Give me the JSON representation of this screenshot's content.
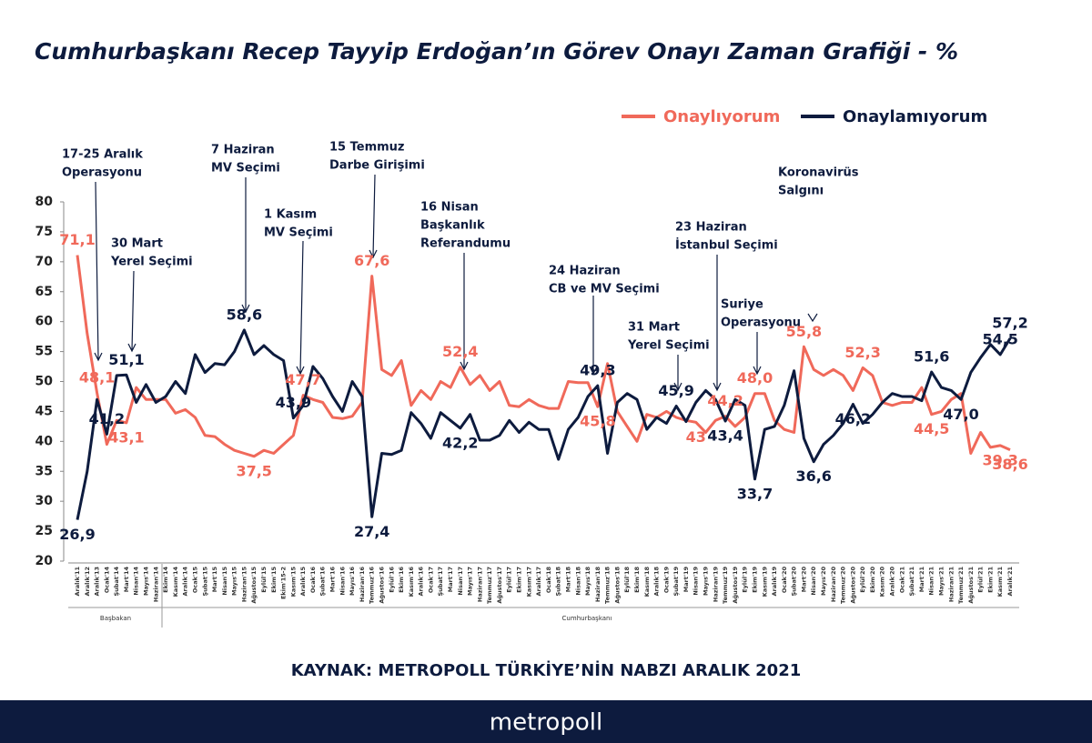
{
  "chart_data": {
    "type": "line",
    "title": "Cumhurbaşkanı Recep Tayyip Erdoğan’ın Görev Onayı Zaman Grafiği - %",
    "categories": [
      "Aralık'11",
      "Aralık'12",
      "Aralık'13",
      "Ocak'14",
      "Şubat'14",
      "Mart'14",
      "Nisan'14",
      "Mayıs'14",
      "Haziran'14",
      "Ekim'14",
      "Kasım'14",
      "Aralık'14",
      "Ocak'15",
      "Şubat'15",
      "Mart'15",
      "Nisan'15",
      "Mayıs'15",
      "Haziran'15",
      "Ağustos'15",
      "Eylül'15",
      "Ekim'15",
      "Ekim'15-2",
      "Kasım'15",
      "Aralık'15",
      "Ocak'16",
      "Şubat'16",
      "Mart'16",
      "Nisan'16",
      "Mayıs'16",
      "Haziran'16",
      "Temmuz'16",
      "Ağustos'16",
      "Eylül'16",
      "Ekim'16",
      "Kasım'16",
      "Aralık'16",
      "Ocak'17",
      "Şubat'17",
      "Mart'17",
      "Nisan'17",
      "Mayıs'17",
      "Haziran'17",
      "Temmuz'17",
      "Ağustos'17",
      "Eylül'17",
      "Ekim'17",
      "Kasım'17",
      "Aralık'17",
      "Ocak'18",
      "Şubat'18",
      "Mart'18",
      "Nisan'18",
      "Mayıs'18",
      "Haziran'18",
      "Temmuz'18",
      "Ağustos'18",
      "Eylül'18",
      "Ekim'18",
      "Kasım'18",
      "Aralık'18",
      "Ocak'19",
      "Şubat'19",
      "Mart'19",
      "Nisan'19",
      "Mayıs'19",
      "Haziran'19",
      "Temmuz'19",
      "Ağustos'19",
      "Eylül'19",
      "Ekim'19",
      "Kasım'19",
      "Aralık'19",
      "Ocak'20",
      "Şubat'20",
      "Mart'20",
      "Nisan'20",
      "Mayıs'20",
      "Haziran'20",
      "Temmuz'20",
      "Ağustos'20",
      "Eylül'20",
      "Ekim'20",
      "Kasım'20",
      "Aralık'20",
      "Ocak'21",
      "Şubat'21",
      "Mart'21",
      "Nisan'21",
      "Mayıs'21",
      "Haziran'21",
      "Temmuz'21",
      "Ağustos'21",
      "Eylül'21",
      "Ekim'21",
      "Kasım'21",
      "Aralık'21"
    ],
    "series": [
      {
        "name": "Onaylıyorum",
        "color": "#f0695a",
        "values": [
          71.1,
          58,
          48.1,
          39.5,
          43.5,
          43.1,
          49,
          47,
          47,
          47,
          44.7,
          45.3,
          44,
          41,
          40.8,
          39.5,
          38.5,
          38,
          37.5,
          38.5,
          38,
          39.5,
          41,
          47.7,
          47,
          46.5,
          44,
          43.8,
          44.2,
          46.5,
          67.6,
          52,
          51,
          53.5,
          46,
          48.5,
          47,
          50,
          49,
          52.4,
          49.5,
          51,
          48.5,
          50,
          46,
          45.8,
          47,
          46,
          45.5,
          45.5,
          50,
          49.8,
          49.8,
          45.8,
          53,
          45,
          42.5,
          40,
          44.5,
          44,
          45,
          44,
          43.5,
          43.2,
          41.5,
          43.5,
          44.2,
          42.5,
          44,
          48.0,
          48,
          43.5,
          42,
          41.5,
          55.8,
          52,
          51,
          52,
          51,
          48.5,
          52.3,
          51,
          46.5,
          46,
          46.5,
          46.5,
          49,
          44.5,
          45,
          47,
          48,
          38,
          41.5,
          39,
          39.3,
          38.6
        ],
        "value_labels": [
          "71,1",
          null,
          "48,1",
          null,
          null,
          "43,1",
          null,
          null,
          null,
          null,
          null,
          null,
          null,
          null,
          null,
          null,
          null,
          null,
          "37,5",
          null,
          null,
          null,
          null,
          "47,7",
          null,
          null,
          null,
          null,
          null,
          null,
          "67,6",
          null,
          null,
          null,
          null,
          null,
          null,
          null,
          null,
          "52,4",
          null,
          null,
          null,
          null,
          null,
          null,
          null,
          null,
          null,
          null,
          null,
          null,
          null,
          "45,8",
          null,
          null,
          null,
          null,
          null,
          null,
          null,
          null,
          null,
          "43",
          null,
          null,
          "44,2",
          null,
          null,
          "48,0",
          null,
          null,
          null,
          null,
          "55,8",
          null,
          null,
          null,
          null,
          null,
          "52,3",
          null,
          null,
          null,
          null,
          null,
          null,
          "44,5",
          null,
          null,
          null,
          null,
          null,
          null,
          "39,3",
          "38,6"
        ]
      },
      {
        "name": "Onaylamıyorum",
        "color": "#0d1b3e",
        "values": [
          26.9,
          35,
          47,
          41.2,
          51,
          51.1,
          46.5,
          49.5,
          46.5,
          47.5,
          50,
          48,
          54.5,
          51.5,
          53,
          52.8,
          55,
          58.6,
          54.5,
          56,
          54.5,
          53.5,
          43.9,
          46,
          52.5,
          50.5,
          47.5,
          45,
          50,
          47.5,
          27.4,
          38,
          37.8,
          38.5,
          44.8,
          43,
          40.5,
          44.8,
          43.5,
          42.2,
          44.5,
          40.2,
          40.2,
          41,
          43.5,
          41.5,
          43.2,
          42,
          42,
          37,
          42,
          44,
          47.5,
          49.3,
          38,
          46.5,
          48,
          47,
          42,
          44,
          43,
          45.9,
          43.3,
          46.5,
          48.5,
          47,
          43.4,
          47,
          46,
          33.7,
          42,
          42.5,
          46,
          51.8,
          40.5,
          36.6,
          39.5,
          41,
          43,
          46.2,
          43,
          44.5,
          46.5,
          48,
          47.5,
          47.5,
          46.8,
          51.6,
          49,
          48.5,
          47.0,
          51.5,
          54,
          56.2,
          54.5,
          57.2
        ],
        "value_labels": [
          "26,9",
          null,
          null,
          "41,2",
          null,
          "51,1",
          null,
          null,
          null,
          null,
          null,
          null,
          null,
          null,
          null,
          null,
          null,
          "58,6",
          null,
          null,
          null,
          null,
          "43,9",
          null,
          null,
          null,
          null,
          null,
          null,
          null,
          "27,4",
          null,
          null,
          null,
          null,
          null,
          null,
          null,
          null,
          "42,2",
          null,
          null,
          null,
          null,
          null,
          null,
          null,
          null,
          null,
          null,
          null,
          null,
          null,
          "49,3",
          null,
          null,
          null,
          null,
          null,
          null,
          null,
          "45,9",
          null,
          null,
          null,
          null,
          "43,4",
          null,
          null,
          "33,7",
          null,
          null,
          null,
          null,
          null,
          "36,6",
          null,
          null,
          null,
          "46,2",
          null,
          null,
          null,
          null,
          null,
          null,
          null,
          "51,6",
          null,
          null,
          "47,0",
          null,
          null,
          null,
          "54,5",
          "57,2"
        ]
      }
    ],
    "ylim": [
      20,
      80
    ],
    "yticks": [
      20,
      25,
      30,
      35,
      40,
      45,
      50,
      55,
      60,
      65,
      70,
      75,
      80
    ],
    "legend": "top-right",
    "groups": [
      "Başbakan",
      "Cumhurbaşkanı"
    ],
    "annotations": [
      [
        "17-25 Aralık",
        "Operasyonu"
      ],
      [
        "30 Mart",
        "Yerel Seçimi"
      ],
      [
        "7 Haziran",
        "MV Seçimi"
      ],
      [
        "1 Kasım",
        "MV Seçimi"
      ],
      [
        "15 Temmuz",
        "Darbe Girişimi"
      ],
      [
        "16 Nisan",
        "Başkanlık",
        "Referandumu"
      ],
      [
        "24 Haziran",
        "CB  ve MV Seçimi"
      ],
      [
        "31 Mart",
        "Yerel Seçimi"
      ],
      [
        "23 Haziran",
        "İstanbul Seçimi"
      ],
      [
        "Suriye",
        "Operasyonu"
      ],
      [
        "Koronavirüs",
        "Salgını"
      ]
    ],
    "source": "KAYNAK: METROPOLL TÜRKİYE’NİN NABZI ARALIK 2021",
    "brand": "metropoll"
  }
}
